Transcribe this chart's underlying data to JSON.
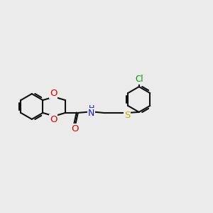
{
  "bg": "#ebebeb",
  "bc": "#111111",
  "oc": "#dd0000",
  "nc": "#1a1acc",
  "sc": "#b8b800",
  "clc": "#009900",
  "lw": 1.5,
  "fs": 8.5,
  "figsize": [
    3.0,
    3.0
  ],
  "dpi": 100,
  "xlim": [
    0,
    14
  ],
  "ylim": [
    2,
    9
  ]
}
